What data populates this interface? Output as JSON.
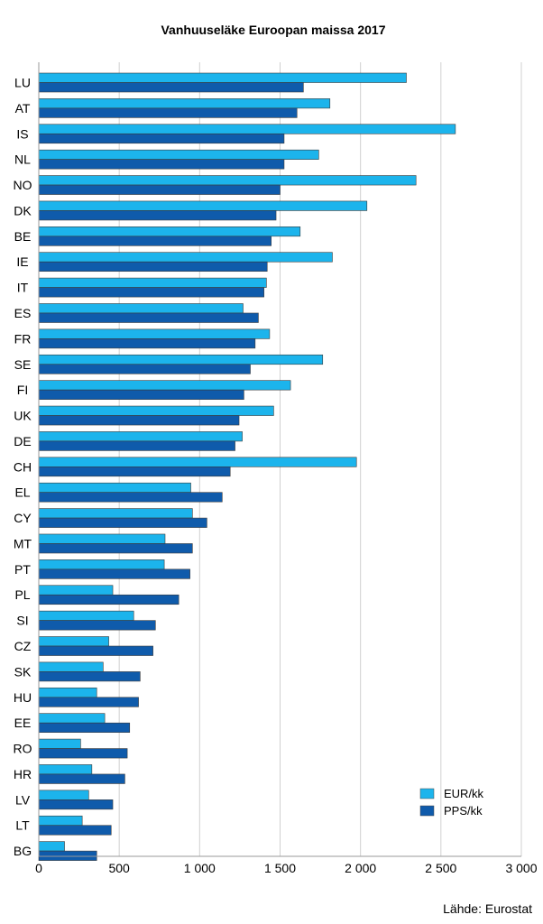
{
  "chart_data": {
    "type": "bar",
    "orientation": "horizontal",
    "title": "Vanhuuseläke Euroopan maissa 2017",
    "categories": [
      "LU",
      "AT",
      "IS",
      "NL",
      "NO",
      "DK",
      "BE",
      "IE",
      "IT",
      "ES",
      "FR",
      "SE",
      "FI",
      "UK",
      "DE",
      "CH",
      "EL",
      "CY",
      "MT",
      "PT",
      "PL",
      "SI",
      "CZ",
      "SK",
      "HU",
      "EE",
      "RO",
      "HR",
      "LV",
      "LT",
      "BG"
    ],
    "series": [
      {
        "name": "EUR/kk",
        "color": "#1cb4ec",
        "values": [
          2285,
          1810,
          2590,
          1740,
          2345,
          2040,
          1625,
          1825,
          1415,
          1270,
          1435,
          1765,
          1565,
          1460,
          1265,
          1975,
          945,
          955,
          785,
          780,
          460,
          590,
          435,
          400,
          360,
          410,
          260,
          330,
          310,
          270,
          160
        ]
      },
      {
        "name": "PPS/kk",
        "color": "#0f5bab",
        "values": [
          1645,
          1605,
          1525,
          1525,
          1500,
          1475,
          1445,
          1420,
          1400,
          1365,
          1345,
          1315,
          1275,
          1245,
          1220,
          1190,
          1140,
          1045,
          955,
          940,
          870,
          725,
          710,
          630,
          620,
          565,
          550,
          535,
          460,
          450,
          360
        ]
      }
    ],
    "xlim": [
      0,
      3000
    ],
    "xticks": [
      0,
      500,
      1000,
      1500,
      2000,
      2500,
      3000
    ],
    "xtick_labels": [
      "0",
      "500",
      "1 000",
      "1 500",
      "2 000",
      "2 500",
      "3 000"
    ],
    "grid": true,
    "legend_position": "bottom-right"
  },
  "source": "Lähde: Eurostat"
}
